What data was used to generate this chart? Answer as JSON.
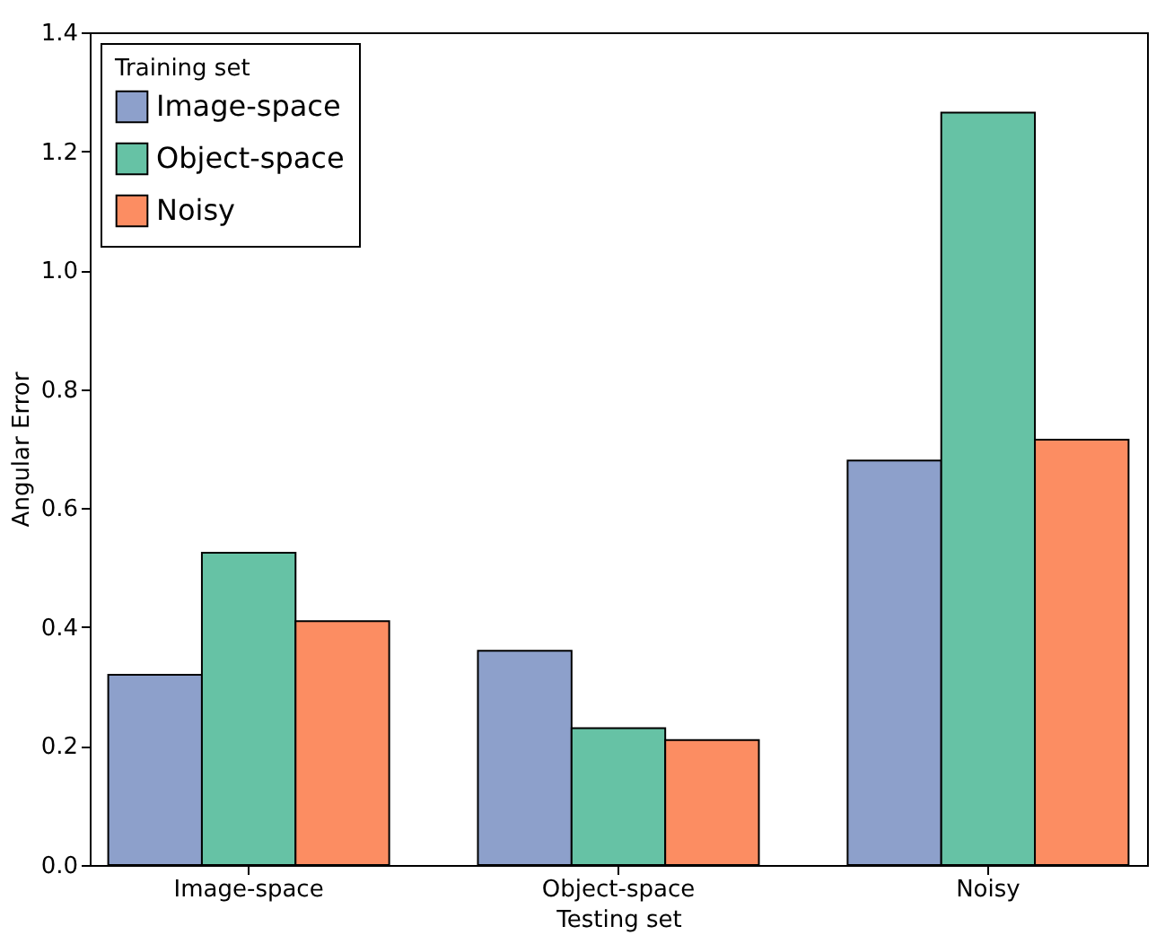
{
  "chart_data": {
    "type": "bar",
    "xlabel": "Testing set",
    "ylabel": "Angular Error",
    "legend_title": "Training set",
    "legend": "top left",
    "grid": false,
    "categories": [
      "Image-space",
      "Object-space",
      "Noisy"
    ],
    "series": [
      {
        "name": "Image-space",
        "color": "#8da0cb",
        "values": [
          0.32,
          0.36,
          0.68
        ]
      },
      {
        "name": "Object-space",
        "color": "#66c2a5",
        "values": [
          0.525,
          0.23,
          1.265
        ]
      },
      {
        "name": "Noisy",
        "color": "#fc8d62",
        "values": [
          0.41,
          0.21,
          0.715
        ]
      }
    ],
    "ylim": [
      0,
      1.4
    ],
    "yticks": [
      {
        "value": 0,
        "label": "0.0"
      },
      0.2,
      0.4,
      0.6,
      0.8,
      {
        "value": 1,
        "label": "1.0"
      },
      1.2,
      1.4
    ]
  }
}
